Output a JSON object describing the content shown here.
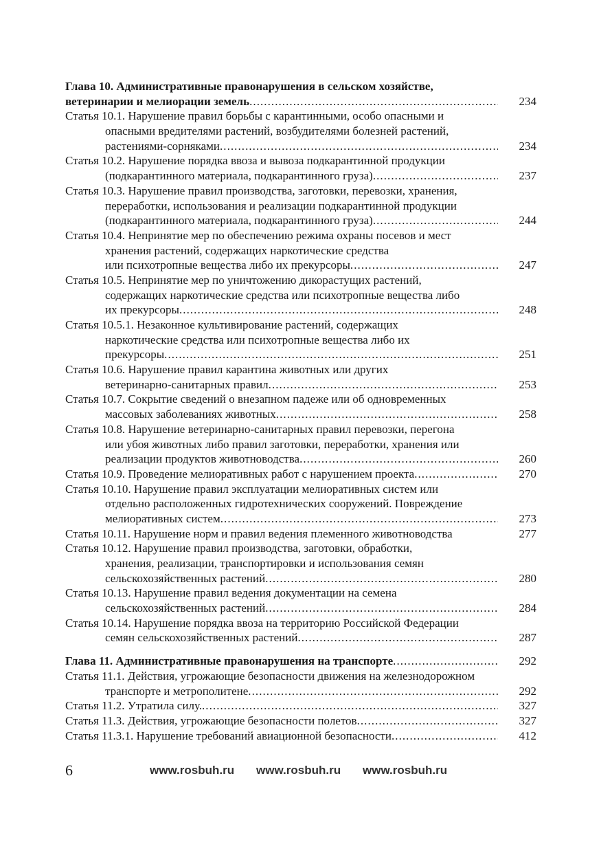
{
  "toc": [
    {
      "type": "chapter",
      "lines": [
        "Глава 10. Административные правонарушения в сельском хозяйстве,",
        "ветеринарии и мелиорации земель"
      ],
      "page": "234"
    },
    {
      "type": "article",
      "lines": [
        "Статья 10.1. Нарушение правил борьбы с карантинными, особо опасными и",
        "опасными вредителями растений, возбудителями болезней растений,",
        "растениями-сорняками"
      ],
      "page": "234"
    },
    {
      "type": "article",
      "lines": [
        "Статья 10.2. Нарушение порядка ввоза и вывоза подкарантинной продукции",
        "(подкарантинного материала, подкарантинного груза)"
      ],
      "page": "237"
    },
    {
      "type": "article",
      "lines": [
        "Статья 10.3. Нарушение правил производства, заготовки, перевозки, хранения,",
        "переработки, использования и реализации подкарантинной продукции",
        "(подкарантинного материала, подкарантинного груза)"
      ],
      "page": "244"
    },
    {
      "type": "article",
      "lines": [
        "Статья 10.4. Непринятие мер по обеспечению режима охраны посевов и мест",
        "хранения растений, содержащих наркотические средства",
        "или психотропные вещества либо их прекурсоры"
      ],
      "page": "247"
    },
    {
      "type": "article",
      "lines": [
        "Статья 10.5. Непринятие мер по уничтожению дикорастущих растений,",
        "содержащих наркотические средства или психотропные вещества либо",
        "их прекурсоры"
      ],
      "page": "248"
    },
    {
      "type": "article",
      "lines": [
        "Статья 10.5.1. Незаконное культивирование растений, содержащих",
        "наркотические средства или психотропные вещества либо их",
        "прекурсоры"
      ],
      "page": "251"
    },
    {
      "type": "article",
      "lines": [
        "Статья 10.6. Нарушение правил карантина животных или других",
        "ветеринарно-санитарных правил"
      ],
      "page": "253"
    },
    {
      "type": "article",
      "lines": [
        "Статья 10.7. Сокрытие сведений о внезапном падеже или об одновременных",
        "массовых заболеваниях животных"
      ],
      "page": "258"
    },
    {
      "type": "article",
      "lines": [
        "Статья 10.8. Нарушение ветеринарно-санитарных правил перевозки, перегона",
        "или убоя животных либо правил заготовки, переработки, хранения или",
        "реализации продуктов животноводства"
      ],
      "page": "260"
    },
    {
      "type": "article",
      "lines": [
        "Статья 10.9. Проведение мелиоративных работ с нарушением проекта"
      ],
      "page": "270"
    },
    {
      "type": "article",
      "lines": [
        "Статья 10.10. Нарушение правил эксплуатации мелиоративных систем или",
        "отдельно расположенных гидротехнических сооружений. Повреждение",
        "мелиоративных систем"
      ],
      "page": "273"
    },
    {
      "type": "article",
      "lines": [
        "Статья 10.11. Нарушение норм и правил ведения племенного животноводства"
      ],
      "page": "277",
      "nodots": true
    },
    {
      "type": "article",
      "lines": [
        "Статья 10.12. Нарушение правил производства, заготовки, обработки,",
        "хранения, реализации, транспортировки и использования семян",
        "сельскохозяйственных растений"
      ],
      "page": "280"
    },
    {
      "type": "article",
      "lines": [
        "Статья 10.13. Нарушение правил ведения документации на семена",
        "сельскохозяйственных растений"
      ],
      "page": "284"
    },
    {
      "type": "article",
      "lines": [
        "Статья 10.14. Нарушение порядка ввоза на территорию Российской Федерации",
        "семян сельскохозяйственных растений"
      ],
      "page": "287"
    },
    {
      "type": "chapter",
      "lines": [
        "Глава 11. Административные правонарушения на транспорте"
      ],
      "page": "292",
      "gap": true
    },
    {
      "type": "article",
      "lines": [
        "Статья 11.1. Действия, угрожающие безопасности движения на железнодорожном",
        "транспорте и метрополитене"
      ],
      "page": "292"
    },
    {
      "type": "article",
      "lines": [
        "Статья 11.2. Утратила силу."
      ],
      "page": "327"
    },
    {
      "type": "article",
      "lines": [
        "Статья 11.3. Действия, угрожающие безопасности полетов"
      ],
      "page": "327"
    },
    {
      "type": "article",
      "lines": [
        "Статья 11.3.1. Нарушение требований авиационной безопасности"
      ],
      "page": "412"
    }
  ],
  "footer": {
    "page_number": "6",
    "urls": [
      "www.rosbuh.ru",
      "www.rosbuh.ru",
      "www.rosbuh.ru"
    ]
  }
}
